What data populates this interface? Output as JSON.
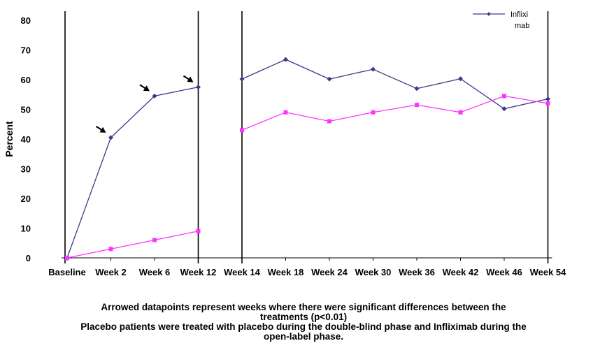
{
  "chart_data": {
    "type": "line",
    "title": "",
    "xlabel": "",
    "ylabel": "Percent",
    "ylim": [
      0,
      80
    ],
    "yticks": [
      "0",
      "10",
      "20",
      "30",
      "40",
      "50",
      "60",
      "70",
      "80"
    ],
    "categories": [
      "Baseline",
      "Week 2",
      "Week 6",
      "Week 12",
      "Week 14",
      "Week 18",
      "Week 24",
      "Week 30",
      "Week 36",
      "Week 42",
      "Week 46",
      "Week 54"
    ],
    "grid": false,
    "legend_position": "top-right",
    "series": [
      {
        "name": "Infliximab",
        "legend_lines": [
          "Inflixi",
          "mab"
        ],
        "color": "#3a3a8c",
        "marker": "diamond",
        "values": [
          0,
          40.5,
          54.5,
          57.5,
          60.2,
          66.8,
          60.2,
          63.5,
          57.0,
          60.3,
          50.2,
          53.5
        ]
      },
      {
        "name": "",
        "color": "#ff33ff",
        "marker": "square",
        "values": [
          0,
          3.0,
          6.0,
          9.0,
          43.0,
          49.0,
          46.0,
          49.0,
          51.5,
          49.0,
          54.5,
          52.0
        ]
      }
    ],
    "vertical_markers": [
      "Baseline",
      "Week 12",
      "Week 14",
      "Week 54"
    ],
    "arrowed_points": [
      "Week 2",
      "Week 6",
      "Week 12"
    ]
  },
  "notes": {
    "line1": "Arrowed datapoints represent weeks where there were significant differences between the",
    "line2": "treatments (p<0.01)",
    "line3": "Placebo patients were treated with placebo during the double-blind phase and Infliximab during the",
    "line4": "open-label phase."
  }
}
